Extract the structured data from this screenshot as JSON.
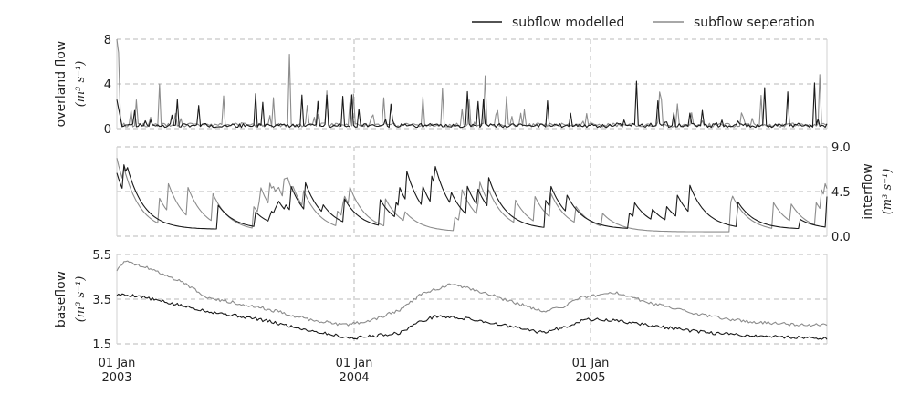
{
  "chart_data": {
    "type": "line",
    "x_range": [
      "2003-01-01",
      "2005-12-31"
    ],
    "x_ticks": [
      {
        "label_day": "01 Jan",
        "label_year": "2003",
        "date": "2003-01-01"
      },
      {
        "label_day": "01 Jan",
        "label_year": "2004",
        "date": "2004-01-01"
      },
      {
        "label_day": "01 Jan",
        "label_year": "2005",
        "date": "2005-01-01"
      }
    ],
    "legend": [
      {
        "label": "subflow modelled",
        "color": "#1a1a1a"
      },
      {
        "label": "subflow seperation",
        "color": "#8c8c8c"
      }
    ],
    "panels": [
      {
        "key": "overland",
        "ylabel": "overland flow",
        "yunit": "(m³ s⁻¹)",
        "ylim": [
          0,
          8
        ],
        "yticks": [
          "0",
          "4",
          "8"
        ],
        "ytick_values": [
          0,
          4,
          8
        ],
        "yaxis_side": "left",
        "series": [
          {
            "name": "subflow modelled",
            "kind": "spiky",
            "base": 0.1,
            "seed": 11,
            "scale": 1.0
          },
          {
            "name": "subflow seperation",
            "kind": "spiky",
            "base": 0.15,
            "seed": 29,
            "scale": 1.0
          }
        ]
      },
      {
        "key": "interflow",
        "ylabel": "interflow",
        "yunit": "(m³ s⁻¹)",
        "ylim": [
          0,
          9
        ],
        "yticks": [
          "0.0",
          "4.5",
          "9.0"
        ],
        "ytick_values": [
          0,
          4.5,
          9
        ],
        "yaxis_side": "right",
        "series": [
          {
            "name": "subflow modelled",
            "kind": "recession",
            "base": 0.7,
            "seed": 7,
            "scale": 1.0
          },
          {
            "name": "subflow seperation",
            "kind": "recession",
            "base": 0.45,
            "seed": 13,
            "scale": 1.0
          }
        ]
      },
      {
        "key": "baseflow",
        "ylabel": "baseflow",
        "yunit": "(m³ s⁻¹)",
        "ylim": [
          1.5,
          5.5
        ],
        "yticks": [
          "1.5",
          "3.5",
          "5.5"
        ],
        "ytick_values": [
          1.5,
          3.5,
          5.5
        ],
        "yaxis_side": "left",
        "series": [
          {
            "name": "subflow modelled",
            "kind": "baseflow",
            "anchors": [
              [
                0.0,
                3.7
              ],
              [
                0.03,
                3.65
              ],
              [
                0.07,
                3.35
              ],
              [
                0.13,
                2.95
              ],
              [
                0.2,
                2.6
              ],
              [
                0.25,
                2.25
              ],
              [
                0.28,
                2.05
              ],
              [
                0.33,
                1.75
              ],
              [
                0.36,
                1.85
              ],
              [
                0.4,
                2.0
              ],
              [
                0.42,
                2.4
              ],
              [
                0.45,
                2.75
              ],
              [
                0.5,
                2.6
              ],
              [
                0.55,
                2.3
              ],
              [
                0.6,
                2.0
              ],
              [
                0.63,
                2.25
              ],
              [
                0.66,
                2.6
              ],
              [
                0.7,
                2.55
              ],
              [
                0.78,
                2.2
              ],
              [
                0.83,
                2.0
              ],
              [
                0.9,
                1.85
              ],
              [
                1.0,
                1.75
              ]
            ]
          },
          {
            "name": "subflow seperation",
            "kind": "baseflow",
            "anchors": [
              [
                0.0,
                4.8
              ],
              [
                0.01,
                5.2
              ],
              [
                0.04,
                4.95
              ],
              [
                0.09,
                4.3
              ],
              [
                0.13,
                3.55
              ],
              [
                0.2,
                3.15
              ],
              [
                0.27,
                2.6
              ],
              [
                0.32,
                2.35
              ],
              [
                0.36,
                2.55
              ],
              [
                0.4,
                3.05
              ],
              [
                0.43,
                3.75
              ],
              [
                0.47,
                4.15
              ],
              [
                0.5,
                3.95
              ],
              [
                0.55,
                3.45
              ],
              [
                0.6,
                2.95
              ],
              [
                0.63,
                3.15
              ],
              [
                0.65,
                3.55
              ],
              [
                0.7,
                3.8
              ],
              [
                0.75,
                3.35
              ],
              [
                0.83,
                2.75
              ],
              [
                0.9,
                2.45
              ],
              [
                0.97,
                2.35
              ],
              [
                1.0,
                2.35
              ]
            ]
          }
        ]
      }
    ]
  }
}
